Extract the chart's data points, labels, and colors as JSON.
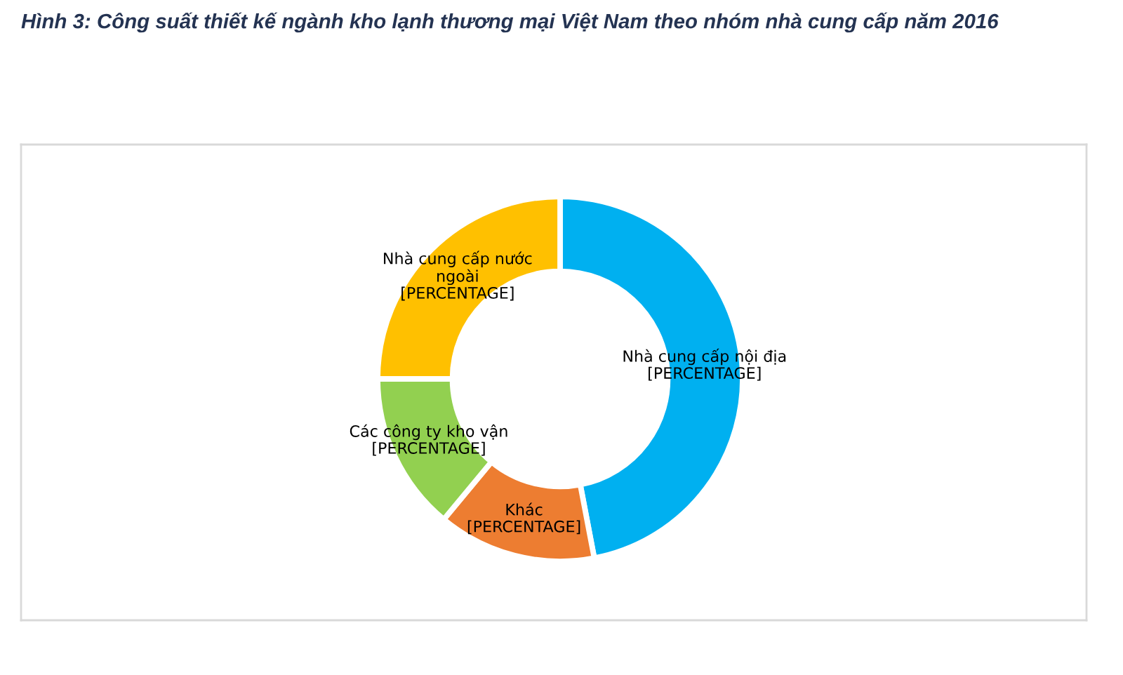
{
  "chart_data": {
    "type": "donut",
    "title": "Hình 3: Công suất thiết kế ngành kho lạnh thương mại Việt Nam theo nhóm nhà cung cấp năm 2016",
    "categories": [
      "Nhà cung cấp nội địa",
      "Khác",
      "Các công ty kho vận",
      "Nhà cung cấp nước\nngoài"
    ],
    "values": [
      47,
      14,
      14,
      25
    ],
    "colors": [
      "#00b0f0",
      "#ed7d31",
      "#92d050",
      "#ffc000"
    ],
    "value_labels": [
      "[PERCENTAGE]",
      "[PERCENTAGE]",
      "[PERCENTAGE]",
      "[PERCENTAGE]"
    ]
  }
}
